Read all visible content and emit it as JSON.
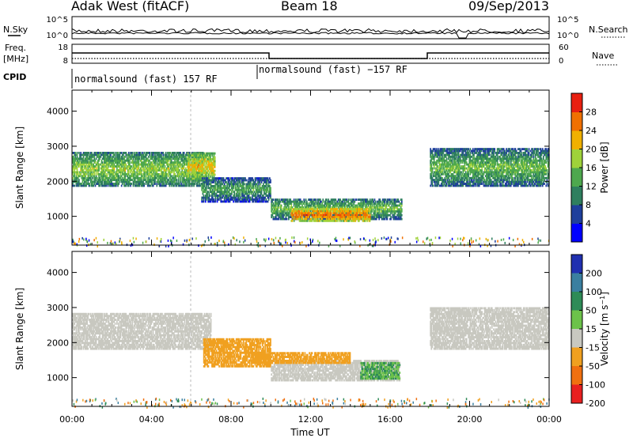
{
  "header": {
    "title": "Adak West (fitACF)",
    "beam": "Beam 18",
    "date": "09/Sep/2013"
  },
  "noise_panel": {
    "left_label": "N.Sky",
    "right_label": "N.Search",
    "left_ticks": [
      "10^5",
      "10^0"
    ],
    "right_ticks": [
      "10^5",
      "10^0"
    ]
  },
  "freq_panel": {
    "left_label_line1": "Freq.",
    "left_label_line2": "[MHz]",
    "left_ticks": [
      "18",
      "8"
    ],
    "right_label": "Nave",
    "right_ticks": [
      "60",
      "0"
    ]
  },
  "cpid": {
    "label": "CPID",
    "programs": [
      "normalsound (fast) 157 RF",
      "normalsound (fast) −157 RF"
    ]
  },
  "x_axis": {
    "label": "Time UT",
    "ticks": [
      "00:00",
      "04:00",
      "08:00",
      "12:00",
      "16:00",
      "20:00",
      "00:00"
    ]
  },
  "chart_data": [
    {
      "type": "heatmap",
      "title": "",
      "xlabel": "Time UT",
      "ylabel": "Slant Range [km]",
      "xlim_hours": [
        0,
        24
      ],
      "ylim_km": [
        180,
        4600
      ],
      "y_ticks": [
        1000,
        2000,
        3000,
        4000
      ],
      "colorbar": {
        "label": "Power [dB]",
        "ticks": [
          "4",
          "8",
          "12",
          "16",
          "20",
          "24",
          "28"
        ],
        "colors": [
          "#0000ff",
          "#1f3f9c",
          "#2f7f5f",
          "#4ea84e",
          "#9fd23a",
          "#f0b000",
          "#f07000",
          "#e82010"
        ]
      },
      "regions": [
        {
          "t0": 0.0,
          "t1": 6.6,
          "r_lo": 1850,
          "r_hi": 2800,
          "value_db": 18
        },
        {
          "t0": 5.8,
          "t1": 7.2,
          "r_lo": 2000,
          "r_hi": 2800,
          "value_db": 22
        },
        {
          "t0": 6.5,
          "t1": 10.0,
          "r_lo": 1400,
          "r_hi": 2100,
          "value_db": 14
        },
        {
          "t0": 10.0,
          "t1": 16.6,
          "r_lo": 900,
          "r_hi": 1500,
          "value_db": 16
        },
        {
          "t0": 11.0,
          "t1": 15.0,
          "r_lo": 850,
          "r_hi": 1200,
          "value_db": 27
        },
        {
          "t0": 18.0,
          "t1": 24.0,
          "r_lo": 1850,
          "r_hi": 2900,
          "value_db": 16
        }
      ]
    },
    {
      "type": "heatmap",
      "title": "",
      "xlabel": "Time UT",
      "ylabel": "Slant Range [km]",
      "xlim_hours": [
        0,
        24
      ],
      "ylim_km": [
        180,
        4600
      ],
      "y_ticks": [
        1000,
        2000,
        3000,
        4000
      ],
      "colorbar": {
        "label": "Velocity [m s^-1]",
        "ticks": [
          "200",
          "100",
          "50",
          "15",
          "-15",
          "-50",
          "-100",
          "-200"
        ],
        "colors": [
          "#2030b0",
          "#3a7fa0",
          "#2e8b57",
          "#6cc24a",
          "#c8c8c0",
          "#f0a020",
          "#f07010",
          "#e82020"
        ]
      },
      "regions": [
        {
          "t0": 0.0,
          "t1": 7.0,
          "r_lo": 1800,
          "r_hi": 2800,
          "value_ms": 0
        },
        {
          "t0": 6.6,
          "t1": 10.0,
          "r_lo": 1300,
          "r_hi": 2100,
          "value_ms": -60
        },
        {
          "t0": 10.0,
          "t1": 16.5,
          "r_lo": 900,
          "r_hi": 1500,
          "value_ms": 0
        },
        {
          "t0": 9.0,
          "t1": 14.0,
          "r_lo": 1400,
          "r_hi": 1700,
          "value_ms": -60
        },
        {
          "t0": 14.5,
          "t1": 16.5,
          "r_lo": 950,
          "r_hi": 1400,
          "value_ms": 30
        },
        {
          "t0": 18.0,
          "t1": 24.0,
          "r_lo": 1800,
          "r_hi": 3000,
          "value_ms": 0
        }
      ]
    }
  ]
}
